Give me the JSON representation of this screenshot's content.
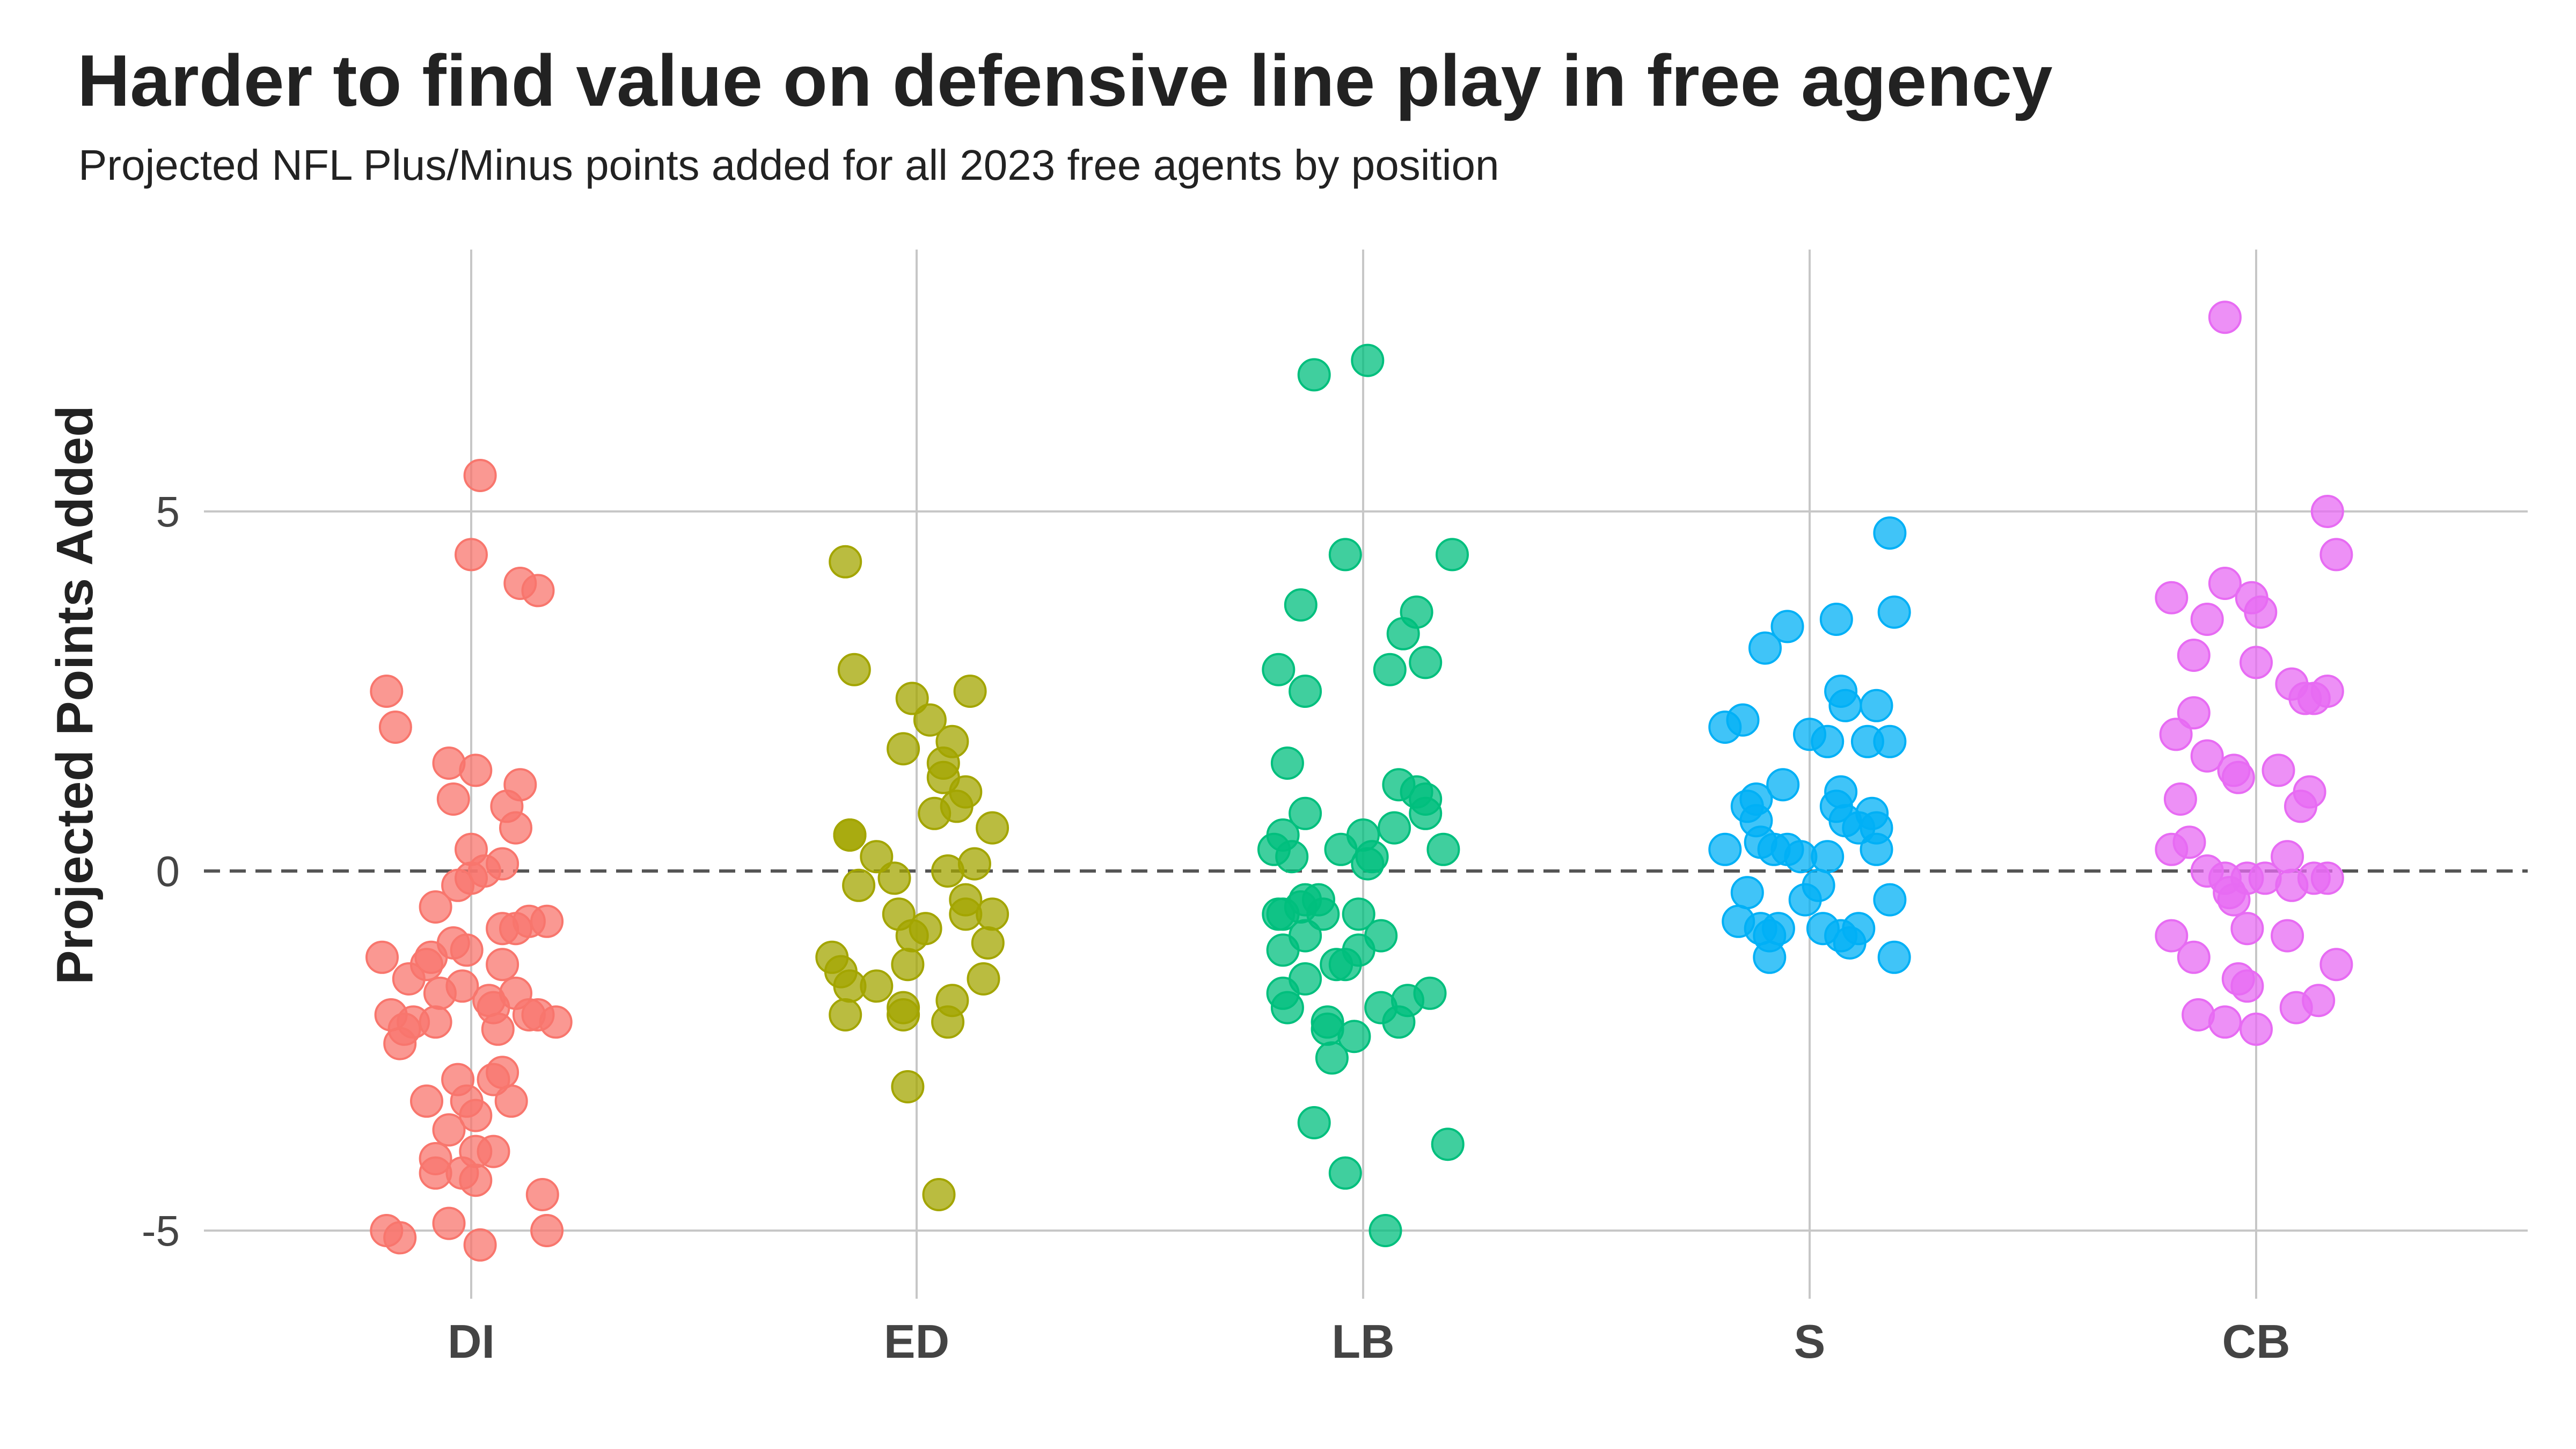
{
  "chart_data": {
    "type": "scatter",
    "title": "Harder to find value on defensive line play in free agency",
    "subtitle": "Projected NFL Plus/Minus points added for all 2023 free agents by position",
    "xlabel": "",
    "ylabel": "Projected Points Added",
    "categories": [
      "DI",
      "ED",
      "LB",
      "S",
      "CB"
    ],
    "yticks": [
      5,
      0,
      -5
    ],
    "ylim": [
      -6.2,
      8.2
    ],
    "grid": true,
    "reference_line": 0,
    "legend": "none",
    "series": [
      {
        "category": "DI",
        "color": "#F8766D",
        "points": [
          {
            "jitter": 0.02,
            "y": 5.5
          },
          {
            "jitter": 0.0,
            "y": 4.4
          },
          {
            "jitter": 0.11,
            "y": 4.0
          },
          {
            "jitter": 0.15,
            "y": 3.9
          },
          {
            "jitter": -0.19,
            "y": 2.5
          },
          {
            "jitter": -0.17,
            "y": 2.0
          },
          {
            "jitter": -0.05,
            "y": 1.5
          },
          {
            "jitter": 0.01,
            "y": 1.4
          },
          {
            "jitter": 0.11,
            "y": 1.2
          },
          {
            "jitter": -0.04,
            "y": 1.0
          },
          {
            "jitter": 0.08,
            "y": 0.9
          },
          {
            "jitter": 0.1,
            "y": 0.6
          },
          {
            "jitter": 0.0,
            "y": 0.3
          },
          {
            "jitter": 0.07,
            "y": 0.1
          },
          {
            "jitter": 0.03,
            "y": 0.0
          },
          {
            "jitter": 0.0,
            "y": -0.1
          },
          {
            "jitter": -0.03,
            "y": -0.2
          },
          {
            "jitter": -0.08,
            "y": -0.5
          },
          {
            "jitter": 0.07,
            "y": -0.8
          },
          {
            "jitter": 0.1,
            "y": -0.8
          },
          {
            "jitter": 0.13,
            "y": -0.7
          },
          {
            "jitter": 0.17,
            "y": -0.7
          },
          {
            "jitter": -0.04,
            "y": -1.0
          },
          {
            "jitter": -0.01,
            "y": -1.1
          },
          {
            "jitter": -0.2,
            "y": -1.2
          },
          {
            "jitter": -0.09,
            "y": -1.2
          },
          {
            "jitter": -0.1,
            "y": -1.3
          },
          {
            "jitter": 0.07,
            "y": -1.3
          },
          {
            "jitter": -0.14,
            "y": -1.5
          },
          {
            "jitter": -0.02,
            "y": -1.6
          },
          {
            "jitter": -0.07,
            "y": -1.7
          },
          {
            "jitter": 0.04,
            "y": -1.8
          },
          {
            "jitter": 0.1,
            "y": -1.7
          },
          {
            "jitter": 0.05,
            "y": -1.9
          },
          {
            "jitter": -0.18,
            "y": -2.0
          },
          {
            "jitter": 0.13,
            "y": -2.0
          },
          {
            "jitter": 0.15,
            "y": -2.0
          },
          {
            "jitter": 0.19,
            "y": -2.1
          },
          {
            "jitter": -0.13,
            "y": -2.1
          },
          {
            "jitter": -0.08,
            "y": -2.1
          },
          {
            "jitter": -0.15,
            "y": -2.2
          },
          {
            "jitter": 0.06,
            "y": -2.2
          },
          {
            "jitter": -0.16,
            "y": -2.4
          },
          {
            "jitter": 0.07,
            "y": -2.8
          },
          {
            "jitter": -0.03,
            "y": -2.9
          },
          {
            "jitter": 0.05,
            "y": -2.9
          },
          {
            "jitter": -0.1,
            "y": -3.2
          },
          {
            "jitter": -0.01,
            "y": -3.2
          },
          {
            "jitter": 0.09,
            "y": -3.2
          },
          {
            "jitter": 0.01,
            "y": -3.4
          },
          {
            "jitter": -0.05,
            "y": -3.6
          },
          {
            "jitter": 0.01,
            "y": -3.9
          },
          {
            "jitter": 0.05,
            "y": -3.9
          },
          {
            "jitter": -0.08,
            "y": -4.0
          },
          {
            "jitter": -0.08,
            "y": -4.2
          },
          {
            "jitter": -0.02,
            "y": -4.2
          },
          {
            "jitter": 0.01,
            "y": -4.3
          },
          {
            "jitter": 0.16,
            "y": -4.5
          },
          {
            "jitter": -0.19,
            "y": -5.0
          },
          {
            "jitter": -0.16,
            "y": -5.1
          },
          {
            "jitter": -0.05,
            "y": -4.9
          },
          {
            "jitter": 0.02,
            "y": -5.2
          },
          {
            "jitter": 0.17,
            "y": -5.0
          }
        ]
      },
      {
        "category": "ED",
        "color": "#A3A500",
        "points": [
          {
            "jitter": -0.16,
            "y": 4.3
          },
          {
            "jitter": -0.14,
            "y": 2.8
          },
          {
            "jitter": -0.01,
            "y": 2.4
          },
          {
            "jitter": 0.03,
            "y": 2.1
          },
          {
            "jitter": 0.12,
            "y": 2.5
          },
          {
            "jitter": 0.08,
            "y": 1.8
          },
          {
            "jitter": -0.03,
            "y": 1.7
          },
          {
            "jitter": 0.06,
            "y": 1.5
          },
          {
            "jitter": 0.06,
            "y": 1.3
          },
          {
            "jitter": 0.11,
            "y": 1.1
          },
          {
            "jitter": 0.09,
            "y": 0.9
          },
          {
            "jitter": 0.04,
            "y": 0.8
          },
          {
            "jitter": 0.17,
            "y": 0.6
          },
          {
            "jitter": -0.15,
            "y": 0.5
          },
          {
            "jitter": -0.15,
            "y": 0.5
          },
          {
            "jitter": -0.09,
            "y": 0.2
          },
          {
            "jitter": 0.13,
            "y": 0.1
          },
          {
            "jitter": 0.07,
            "y": 0.0
          },
          {
            "jitter": -0.05,
            "y": -0.1
          },
          {
            "jitter": -0.13,
            "y": -0.2
          },
          {
            "jitter": 0.11,
            "y": -0.4
          },
          {
            "jitter": -0.04,
            "y": -0.6
          },
          {
            "jitter": 0.11,
            "y": -0.6
          },
          {
            "jitter": 0.17,
            "y": -0.6
          },
          {
            "jitter": 0.02,
            "y": -0.8
          },
          {
            "jitter": -0.01,
            "y": -0.9
          },
          {
            "jitter": 0.16,
            "y": -1.0
          },
          {
            "jitter": -0.19,
            "y": -1.2
          },
          {
            "jitter": -0.17,
            "y": -1.4
          },
          {
            "jitter": -0.02,
            "y": -1.3
          },
          {
            "jitter": -0.09,
            "y": -1.6
          },
          {
            "jitter": -0.15,
            "y": -1.6
          },
          {
            "jitter": 0.15,
            "y": -1.5
          },
          {
            "jitter": 0.08,
            "y": -1.8
          },
          {
            "jitter": -0.03,
            "y": -1.9
          },
          {
            "jitter": -0.16,
            "y": -2.0
          },
          {
            "jitter": -0.03,
            "y": -2.0
          },
          {
            "jitter": 0.07,
            "y": -2.1
          },
          {
            "jitter": -0.02,
            "y": -3.0
          },
          {
            "jitter": 0.05,
            "y": -4.5
          }
        ]
      },
      {
        "category": "LB",
        "color": "#00BF7D",
        "points": [
          {
            "jitter": 0.01,
            "y": 7.1
          },
          {
            "jitter": -0.11,
            "y": 6.9
          },
          {
            "jitter": -0.04,
            "y": 4.4
          },
          {
            "jitter": 0.2,
            "y": 4.4
          },
          {
            "jitter": -0.14,
            "y": 3.7
          },
          {
            "jitter": 0.12,
            "y": 3.6
          },
          {
            "jitter": 0.09,
            "y": 3.3
          },
          {
            "jitter": 0.14,
            "y": 2.9
          },
          {
            "jitter": -0.19,
            "y": 2.8
          },
          {
            "jitter": 0.06,
            "y": 2.8
          },
          {
            "jitter": -0.13,
            "y": 2.5
          },
          {
            "jitter": -0.17,
            "y": 1.5
          },
          {
            "jitter": 0.08,
            "y": 1.2
          },
          {
            "jitter": 0.12,
            "y": 1.1
          },
          {
            "jitter": 0.14,
            "y": 1.0
          },
          {
            "jitter": 0.14,
            "y": 0.8
          },
          {
            "jitter": -0.13,
            "y": 0.8
          },
          {
            "jitter": 0.07,
            "y": 0.6
          },
          {
            "jitter": -0.18,
            "y": 0.5
          },
          {
            "jitter": 0.0,
            "y": 0.5
          },
          {
            "jitter": 0.18,
            "y": 0.3
          },
          {
            "jitter": -0.2,
            "y": 0.3
          },
          {
            "jitter": -0.16,
            "y": 0.2
          },
          {
            "jitter": -0.05,
            "y": 0.3
          },
          {
            "jitter": 0.02,
            "y": 0.2
          },
          {
            "jitter": 0.01,
            "y": 0.1
          },
          {
            "jitter": -0.13,
            "y": -0.4
          },
          {
            "jitter": -0.1,
            "y": -0.4
          },
          {
            "jitter": -0.14,
            "y": -0.5
          },
          {
            "jitter": -0.09,
            "y": -0.6
          },
          {
            "jitter": -0.19,
            "y": -0.6
          },
          {
            "jitter": -0.18,
            "y": -0.6
          },
          {
            "jitter": -0.01,
            "y": -0.6
          },
          {
            "jitter": 0.04,
            "y": -0.9
          },
          {
            "jitter": -0.13,
            "y": -0.9
          },
          {
            "jitter": -0.18,
            "y": -1.1
          },
          {
            "jitter": -0.01,
            "y": -1.1
          },
          {
            "jitter": -0.06,
            "y": -1.3
          },
          {
            "jitter": -0.04,
            "y": -1.3
          },
          {
            "jitter": -0.13,
            "y": -1.5
          },
          {
            "jitter": -0.18,
            "y": -1.7
          },
          {
            "jitter": 0.15,
            "y": -1.7
          },
          {
            "jitter": 0.1,
            "y": -1.8
          },
          {
            "jitter": 0.04,
            "y": -1.9
          },
          {
            "jitter": -0.17,
            "y": -1.9
          },
          {
            "jitter": 0.08,
            "y": -2.1
          },
          {
            "jitter": -0.08,
            "y": -2.1
          },
          {
            "jitter": -0.08,
            "y": -2.2
          },
          {
            "jitter": -0.02,
            "y": -2.3
          },
          {
            "jitter": -0.07,
            "y": -2.6
          },
          {
            "jitter": -0.11,
            "y": -3.5
          },
          {
            "jitter": 0.19,
            "y": -3.8
          },
          {
            "jitter": -0.04,
            "y": -4.2
          },
          {
            "jitter": 0.05,
            "y": -5.0
          }
        ]
      },
      {
        "category": "S",
        "color": "#00B0F6",
        "points": [
          {
            "jitter": 0.18,
            "y": 4.7
          },
          {
            "jitter": 0.06,
            "y": 3.5
          },
          {
            "jitter": 0.19,
            "y": 3.6
          },
          {
            "jitter": -0.05,
            "y": 3.4
          },
          {
            "jitter": -0.1,
            "y": 3.1
          },
          {
            "jitter": 0.07,
            "y": 2.5
          },
          {
            "jitter": 0.15,
            "y": 2.3
          },
          {
            "jitter": 0.08,
            "y": 2.3
          },
          {
            "jitter": -0.15,
            "y": 2.1
          },
          {
            "jitter": -0.19,
            "y": 2.0
          },
          {
            "jitter": 0.0,
            "y": 1.9
          },
          {
            "jitter": 0.04,
            "y": 1.8
          },
          {
            "jitter": 0.13,
            "y": 1.8
          },
          {
            "jitter": 0.18,
            "y": 1.8
          },
          {
            "jitter": -0.06,
            "y": 1.2
          },
          {
            "jitter": 0.07,
            "y": 1.1
          },
          {
            "jitter": -0.12,
            "y": 1.0
          },
          {
            "jitter": -0.14,
            "y": 0.9
          },
          {
            "jitter": 0.06,
            "y": 0.9
          },
          {
            "jitter": 0.14,
            "y": 0.8
          },
          {
            "jitter": -0.12,
            "y": 0.7
          },
          {
            "jitter": 0.08,
            "y": 0.7
          },
          {
            "jitter": 0.11,
            "y": 0.6
          },
          {
            "jitter": 0.15,
            "y": 0.6
          },
          {
            "jitter": -0.11,
            "y": 0.4
          },
          {
            "jitter": -0.08,
            "y": 0.3
          },
          {
            "jitter": -0.19,
            "y": 0.3
          },
          {
            "jitter": -0.05,
            "y": 0.3
          },
          {
            "jitter": -0.02,
            "y": 0.2
          },
          {
            "jitter": 0.04,
            "y": 0.2
          },
          {
            "jitter": 0.15,
            "y": 0.3
          },
          {
            "jitter": -0.14,
            "y": -0.3
          },
          {
            "jitter": -0.01,
            "y": -0.4
          },
          {
            "jitter": 0.02,
            "y": -0.2
          },
          {
            "jitter": 0.18,
            "y": -0.4
          },
          {
            "jitter": -0.16,
            "y": -0.7
          },
          {
            "jitter": -0.11,
            "y": -0.8
          },
          {
            "jitter": -0.07,
            "y": -0.8
          },
          {
            "jitter": 0.03,
            "y": -0.8
          },
          {
            "jitter": 0.11,
            "y": -0.8
          },
          {
            "jitter": -0.09,
            "y": -0.9
          },
          {
            "jitter": 0.07,
            "y": -0.9
          },
          {
            "jitter": 0.09,
            "y": -1.0
          },
          {
            "jitter": -0.09,
            "y": -1.2
          },
          {
            "jitter": 0.19,
            "y": -1.2
          }
        ]
      },
      {
        "category": "CB",
        "color": "#E76BF3",
        "points": [
          {
            "jitter": -0.07,
            "y": 7.7
          },
          {
            "jitter": 0.16,
            "y": 5.0
          },
          {
            "jitter": 0.18,
            "y": 4.4
          },
          {
            "jitter": -0.07,
            "y": 4.0
          },
          {
            "jitter": -0.19,
            "y": 3.8
          },
          {
            "jitter": -0.01,
            "y": 3.8
          },
          {
            "jitter": 0.01,
            "y": 3.6
          },
          {
            "jitter": -0.11,
            "y": 3.5
          },
          {
            "jitter": -0.14,
            "y": 3.0
          },
          {
            "jitter": 0.0,
            "y": 2.9
          },
          {
            "jitter": 0.08,
            "y": 2.6
          },
          {
            "jitter": 0.11,
            "y": 2.4
          },
          {
            "jitter": 0.13,
            "y": 2.4
          },
          {
            "jitter": 0.16,
            "y": 2.5
          },
          {
            "jitter": -0.14,
            "y": 2.2
          },
          {
            "jitter": -0.18,
            "y": 1.9
          },
          {
            "jitter": -0.11,
            "y": 1.6
          },
          {
            "jitter": -0.05,
            "y": 1.4
          },
          {
            "jitter": -0.04,
            "y": 1.3
          },
          {
            "jitter": 0.05,
            "y": 1.4
          },
          {
            "jitter": 0.12,
            "y": 1.1
          },
          {
            "jitter": -0.17,
            "y": 1.0
          },
          {
            "jitter": 0.1,
            "y": 0.9
          },
          {
            "jitter": -0.15,
            "y": 0.4
          },
          {
            "jitter": -0.19,
            "y": 0.3
          },
          {
            "jitter": 0.07,
            "y": 0.2
          },
          {
            "jitter": -0.11,
            "y": 0.0
          },
          {
            "jitter": -0.07,
            "y": -0.1
          },
          {
            "jitter": -0.02,
            "y": -0.1
          },
          {
            "jitter": 0.02,
            "y": -0.1
          },
          {
            "jitter": 0.08,
            "y": -0.2
          },
          {
            "jitter": 0.13,
            "y": -0.1
          },
          {
            "jitter": 0.16,
            "y": -0.1
          },
          {
            "jitter": -0.06,
            "y": -0.3
          },
          {
            "jitter": -0.05,
            "y": -0.4
          },
          {
            "jitter": -0.02,
            "y": -0.8
          },
          {
            "jitter": -0.19,
            "y": -0.9
          },
          {
            "jitter": 0.07,
            "y": -0.9
          },
          {
            "jitter": -0.14,
            "y": -1.2
          },
          {
            "jitter": 0.18,
            "y": -1.3
          },
          {
            "jitter": -0.04,
            "y": -1.5
          },
          {
            "jitter": -0.02,
            "y": -1.6
          },
          {
            "jitter": 0.14,
            "y": -1.8
          },
          {
            "jitter": 0.09,
            "y": -1.9
          },
          {
            "jitter": -0.13,
            "y": -2.0
          },
          {
            "jitter": -0.07,
            "y": -2.1
          },
          {
            "jitter": 0.0,
            "y": -2.2
          }
        ]
      }
    ]
  }
}
